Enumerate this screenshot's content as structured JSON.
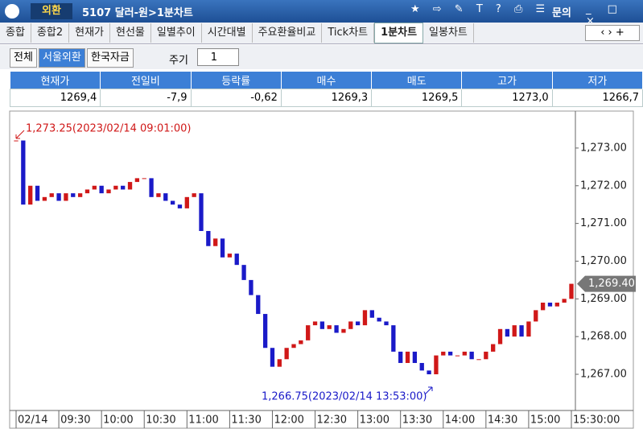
{
  "window": {
    "tab": "외환",
    "title": "5107 달러-원>1분차트",
    "menu": "문의"
  },
  "tabs": [
    "종합",
    "종합2",
    "현재가",
    "현선물",
    "일별추이",
    "시간대별",
    "주요환율비교",
    "Tick차트",
    "1분차트",
    "일봉차트"
  ],
  "controls": {
    "buttons": [
      "전체",
      "서울외환",
      "한국자금"
    ],
    "period_label": "주기",
    "period": "1"
  },
  "table": {
    "header": [
      "현재가",
      "전일비",
      "등락률",
      "매수",
      "매도",
      "고가",
      "저가"
    ],
    "row": [
      "1269,4",
      "-7,9",
      "-0,62",
      "1269,3",
      "1269,5",
      "1273,0",
      "1266,7"
    ]
  },
  "chart_data": {
    "type": "candlestick",
    "categories": [
      "02/14",
      null,
      null,
      null,
      null,
      null,
      "09:30",
      null,
      null,
      null,
      null,
      null,
      "10:00",
      null,
      null,
      null,
      null,
      null,
      "10:30",
      null,
      null,
      null,
      null,
      null,
      "11:00",
      null,
      null,
      null,
      null,
      null,
      "11:30",
      null,
      null,
      null,
      null,
      null,
      "12:00",
      null,
      null,
      null,
      null,
      null,
      "12:30",
      null,
      null,
      null,
      null,
      null,
      "13:00",
      null,
      null,
      null,
      null,
      null,
      "13:30",
      null,
      null,
      null,
      null,
      null,
      "14:00",
      null,
      null,
      null,
      null,
      null,
      "14:30",
      null,
      null,
      null,
      null,
      null,
      "15:00",
      null,
      null,
      null,
      null,
      null,
      "15:30:00"
    ],
    "values": [
      1273.2,
      1271.5,
      1272.0,
      1271.6,
      1271.7,
      1271.8,
      1271.6,
      1271.8,
      1271.7,
      1271.8,
      1271.9,
      1272.0,
      1271.8,
      1271.9,
      1272.0,
      1271.9,
      1272.1,
      1272.2,
      1272.2,
      1271.7,
      1271.8,
      1271.6,
      1271.5,
      1271.4,
      1271.7,
      1271.8,
      1270.8,
      1270.4,
      1270.6,
      1270.1,
      1270.2,
      1269.9,
      1269.5,
      1269.1,
      1268.6,
      1267.7,
      1267.2,
      1267.4,
      1267.7,
      1267.8,
      1267.9,
      1268.3,
      1268.4,
      1268.2,
      1268.3,
      1268.1,
      1268.2,
      1268.4,
      1268.3,
      1268.7,
      1268.5,
      1268.4,
      1268.3,
      1267.6,
      1267.3,
      1267.6,
      1267.3,
      1267.1,
      1267.0,
      1267.5,
      1267.6,
      1267.5,
      1267.5,
      1267.6,
      1267.4,
      1267.4,
      1267.6,
      1267.8,
      1268.2,
      1268.0,
      1268.3,
      1268.0,
      1268.4,
      1268.7,
      1268.9,
      1268.8,
      1268.9,
      1269.0,
      1269.4
    ],
    "up_color": "#d01818",
    "down_color": "#1a1ac8",
    "ylim": [
      1266.04,
      1273.98
    ],
    "yticks": [
      {
        "value": 1267,
        "label": "1,267.00"
      },
      {
        "value": 1268,
        "label": "1,268.00"
      },
      {
        "value": 1269,
        "label": "1,269.00"
      },
      {
        "value": 1270,
        "label": "1,270.00"
      },
      {
        "value": 1271,
        "label": "1,271.00"
      },
      {
        "value": 1272,
        "label": "1,272.00"
      },
      {
        "value": 1273,
        "label": "1,273.00"
      }
    ],
    "high_annotation": "1,273.25(2023/02/14 09:01:00)",
    "low_annotation": "1,266.75(2023/02/14 13:53:00)",
    "price_tag": "1,269.40"
  }
}
